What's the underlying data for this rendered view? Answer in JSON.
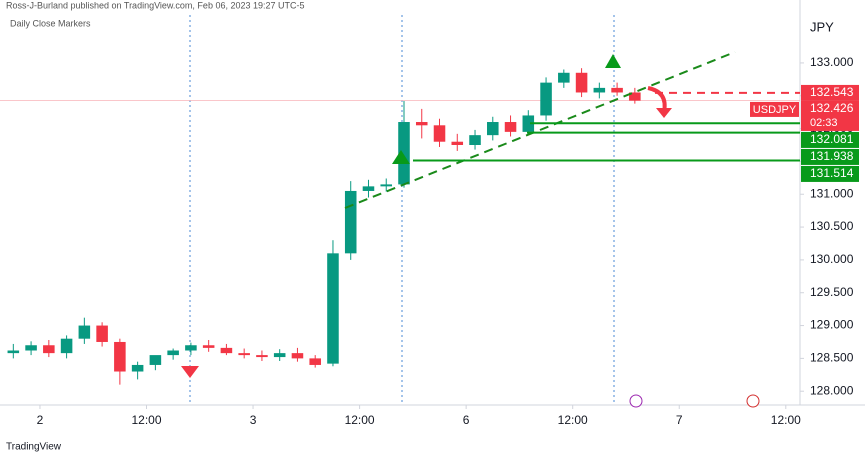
{
  "header": "Ross-J-Burland published on TradingView.com, Feb 06, 2023 19:27 UTC-5",
  "footer": "TradingView",
  "chart_data": {
    "type": "candlestick",
    "title": "Daily Close Markers",
    "symbol": "USDJPY",
    "y_axis_label": "JPY",
    "up_color": "#089981",
    "down_color": "#f23645",
    "x": [
      -3,
      -1,
      1,
      3,
      5,
      7,
      9,
      11,
      13,
      15,
      17,
      19,
      21,
      23,
      25,
      27,
      29,
      31,
      33,
      35,
      37,
      39,
      41,
      43,
      45,
      47,
      49,
      51,
      53,
      55,
      57,
      59,
      61,
      63,
      65,
      67
    ],
    "open": [
      128.58,
      128.62,
      128.7,
      128.58,
      128.8,
      129.0,
      128.75,
      128.3,
      128.4,
      128.55,
      128.62,
      128.7,
      128.66,
      128.58,
      128.55,
      128.52,
      128.58,
      128.5,
      128.42,
      130.1,
      131.05,
      131.12,
      131.15,
      132.1,
      132.05,
      131.8,
      131.75,
      131.9,
      132.1,
      131.95,
      132.2,
      132.7,
      132.85,
      132.55,
      132.62,
      132.55
    ],
    "high": [
      128.72,
      128.76,
      128.78,
      128.85,
      129.12,
      129.05,
      128.8,
      128.45,
      128.52,
      128.65,
      128.74,
      128.78,
      128.72,
      128.65,
      128.62,
      128.64,
      128.66,
      128.55,
      130.3,
      131.2,
      131.22,
      131.24,
      132.42,
      132.3,
      132.15,
      131.92,
      131.98,
      132.18,
      132.2,
      132.28,
      132.78,
      132.9,
      132.92,
      132.7,
      132.7,
      132.62
    ],
    "low": [
      128.5,
      128.55,
      128.52,
      128.5,
      128.72,
      128.68,
      128.1,
      128.18,
      128.32,
      128.48,
      128.55,
      128.6,
      128.55,
      128.5,
      128.46,
      128.46,
      128.45,
      128.36,
      128.38,
      130.0,
      130.95,
      131.04,
      131.1,
      131.85,
      131.72,
      131.66,
      131.68,
      131.82,
      131.88,
      131.9,
      132.12,
      132.62,
      132.48,
      132.46,
      132.5,
      132.38
    ],
    "close": [
      128.62,
      128.7,
      128.58,
      128.8,
      129.0,
      128.75,
      128.3,
      128.4,
      128.55,
      128.62,
      128.7,
      128.66,
      128.58,
      128.55,
      128.52,
      128.58,
      128.5,
      128.4,
      130.1,
      131.05,
      131.12,
      131.15,
      132.1,
      132.05,
      131.8,
      131.75,
      131.9,
      132.1,
      131.95,
      132.2,
      132.7,
      132.85,
      132.55,
      132.62,
      132.55,
      132.426
    ],
    "last_price": 132.426,
    "countdown": "02:33",
    "levels": [
      {
        "value": 132.543,
        "color": "#f23645"
      },
      {
        "value": 132.081,
        "color": "#089a1a"
      },
      {
        "value": 131.938,
        "color": "#089a1a"
      },
      {
        "value": 131.514,
        "color": "#089a1a"
      }
    ],
    "xlim": [
      -4.5,
      85.6
    ],
    "xticks": [
      {
        "value": 0,
        "label": "2"
      },
      {
        "value": 12,
        "label": "12:00"
      },
      {
        "value": 24,
        "label": "3"
      },
      {
        "value": 36,
        "label": "12:00"
      },
      {
        "value": 48,
        "label": "6"
      },
      {
        "value": 60,
        "label": "12:00"
      },
      {
        "value": 72,
        "label": "7"
      },
      {
        "value": 84,
        "label": "12:00"
      }
    ],
    "ylim": [
      127.79,
      133.73
    ],
    "yticks": [
      {
        "value": 128,
        "label": "128.000"
      },
      {
        "value": 128.5,
        "label": "128.500"
      },
      {
        "value": 129,
        "label": "129.000"
      },
      {
        "value": 129.5,
        "label": "129.500"
      },
      {
        "value": 130,
        "label": "130.000"
      },
      {
        "value": 130.5,
        "label": "130.500"
      },
      {
        "value": 131,
        "label": "131.000"
      },
      {
        "value": 131.5,
        "label": "131.500"
      },
      {
        "value": 132,
        "label": "132.000"
      },
      {
        "value": 132.5,
        "label": "132.500"
      },
      {
        "value": 133,
        "label": "133.000"
      }
    ]
  }
}
